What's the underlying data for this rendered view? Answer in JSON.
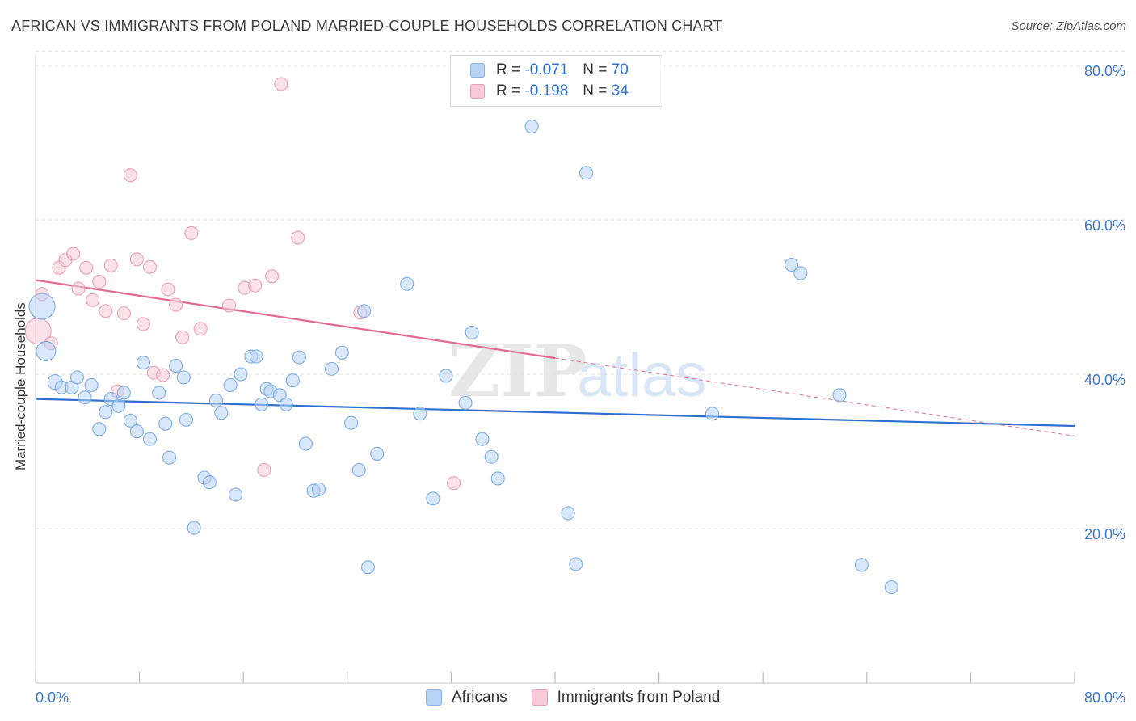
{
  "header": {
    "title": "AFRICAN VS IMMIGRANTS FROM POLAND MARRIED-COUPLE HOUSEHOLDS CORRELATION CHART",
    "source": "Source: ZipAtlas.com"
  },
  "legend": {
    "rows": [
      {
        "r_label": "R =",
        "r_value": "-0.071",
        "n_label": "N =",
        "n_value": "70"
      },
      {
        "r_label": "R =",
        "r_value": "-0.198",
        "n_label": "N =",
        "n_value": "34"
      }
    ],
    "bottom": [
      "Africans",
      "Immigrants from Poland"
    ]
  },
  "colors": {
    "africans_fill": "#b9d3f6",
    "africans_stroke": "#7eaee6",
    "africans_line": "#2f6fd0",
    "poland_fill": "#f8c9d6",
    "poland_stroke": "#eaa0b6",
    "poland_line": "#e36a93",
    "tick_label": "#3a78d0",
    "grid": "#dcdcdc"
  },
  "chart_data": {
    "type": "scatter",
    "title": "AFRICAN VS IMMIGRANTS FROM POLAND MARRIED-COUPLE HOUSEHOLDS CORRELATION CHART",
    "xlabel": "",
    "ylabel": "Married-couple Households",
    "xlim": [
      0,
      80
    ],
    "ylim": [
      0,
      82
    ],
    "x_tick_labels": [
      "0.0%",
      "80.0%"
    ],
    "y_ticks": [
      20,
      40,
      60,
      80
    ],
    "y_tick_labels": [
      "20.0%",
      "40.0%",
      "60.0%",
      "80.0%"
    ],
    "grid": true,
    "watermark": "ZIPatlas",
    "series": [
      {
        "name": "Africans",
        "r": -0.071,
        "n": 70,
        "trend": {
          "x0": 0,
          "y0": 36.8,
          "x1": 80,
          "y1": 33.3,
          "dash_from": null
        },
        "points": [
          [
            0.5,
            48.8,
            16
          ],
          [
            0.8,
            43.0,
            12
          ],
          [
            1.5,
            39.0,
            9
          ],
          [
            2.0,
            38.3,
            8
          ],
          [
            2.8,
            38.3,
            8
          ],
          [
            3.2,
            39.6,
            8
          ],
          [
            3.8,
            37.0,
            8
          ],
          [
            4.3,
            38.6,
            8
          ],
          [
            4.9,
            32.9,
            8
          ],
          [
            5.4,
            35.1,
            8
          ],
          [
            5.8,
            36.8,
            8
          ],
          [
            6.4,
            35.9,
            8
          ],
          [
            6.8,
            37.6,
            8
          ],
          [
            7.3,
            34.0,
            8
          ],
          [
            7.8,
            32.6,
            8
          ],
          [
            8.3,
            41.5,
            8
          ],
          [
            8.8,
            31.6,
            8
          ],
          [
            9.5,
            37.6,
            8
          ],
          [
            10.0,
            33.6,
            8
          ],
          [
            10.3,
            29.2,
            8
          ],
          [
            10.8,
            41.1,
            8
          ],
          [
            11.4,
            39.6,
            8
          ],
          [
            11.6,
            34.1,
            8
          ],
          [
            12.2,
            20.1,
            8
          ],
          [
            13.0,
            26.6,
            8
          ],
          [
            13.4,
            26.0,
            8
          ],
          [
            13.9,
            36.6,
            8
          ],
          [
            14.3,
            35.0,
            8
          ],
          [
            15.0,
            38.6,
            8
          ],
          [
            15.4,
            24.4,
            8
          ],
          [
            15.8,
            40.0,
            8
          ],
          [
            16.6,
            42.3,
            8
          ],
          [
            17.0,
            42.3,
            8
          ],
          [
            17.4,
            36.1,
            8
          ],
          [
            17.8,
            38.1,
            8
          ],
          [
            18.1,
            37.8,
            8
          ],
          [
            18.8,
            37.3,
            8
          ],
          [
            19.3,
            36.1,
            8
          ],
          [
            19.8,
            39.2,
            8
          ],
          [
            20.3,
            42.2,
            8
          ],
          [
            20.8,
            31.0,
            8
          ],
          [
            21.4,
            24.9,
            8
          ],
          [
            21.8,
            25.1,
            8
          ],
          [
            22.8,
            40.7,
            8
          ],
          [
            23.6,
            42.8,
            8
          ],
          [
            24.3,
            33.7,
            8
          ],
          [
            24.9,
            27.6,
            8
          ],
          [
            25.3,
            48.2,
            8
          ],
          [
            25.6,
            15.0,
            8
          ],
          [
            26.3,
            29.7,
            8
          ],
          [
            28.6,
            51.7,
            8
          ],
          [
            29.6,
            34.9,
            8
          ],
          [
            30.6,
            23.9,
            8
          ],
          [
            31.6,
            39.8,
            8
          ],
          [
            33.1,
            36.3,
            8
          ],
          [
            33.6,
            45.4,
            8
          ],
          [
            34.4,
            31.6,
            8
          ],
          [
            35.1,
            29.3,
            8
          ],
          [
            35.6,
            26.5,
            8
          ],
          [
            38.2,
            72.1,
            8
          ],
          [
            41.0,
            22.0,
            8
          ],
          [
            41.6,
            15.4,
            8
          ],
          [
            42.4,
            66.1,
            8
          ],
          [
            52.1,
            34.9,
            8
          ],
          [
            58.2,
            54.2,
            8
          ],
          [
            58.9,
            53.1,
            8
          ],
          [
            61.9,
            37.3,
            8
          ],
          [
            63.6,
            15.3,
            8
          ],
          [
            65.9,
            12.4,
            8
          ],
          [
            61.0,
            53.1,
            0
          ]
        ]
      },
      {
        "name": "Immigrants from Poland",
        "r": -0.198,
        "n": 34,
        "trend": {
          "x0": 0,
          "y0": 52.2,
          "x1": 80,
          "y1": 32.0,
          "dash_from": 40
        },
        "points": [
          [
            0.2,
            45.6,
            16
          ],
          [
            0.5,
            50.4,
            8
          ],
          [
            1.2,
            44.0,
            8
          ],
          [
            1.8,
            53.8,
            8
          ],
          [
            2.3,
            54.8,
            8
          ],
          [
            2.9,
            55.6,
            8
          ],
          [
            3.3,
            51.1,
            8
          ],
          [
            3.9,
            53.8,
            8
          ],
          [
            4.4,
            49.6,
            8
          ],
          [
            4.9,
            52.0,
            8
          ],
          [
            5.4,
            48.2,
            8
          ],
          [
            5.8,
            54.1,
            8
          ],
          [
            6.3,
            37.8,
            8
          ],
          [
            6.8,
            47.9,
            8
          ],
          [
            7.3,
            65.8,
            8
          ],
          [
            7.8,
            54.9,
            8
          ],
          [
            8.3,
            46.5,
            8
          ],
          [
            8.8,
            53.9,
            8
          ],
          [
            9.1,
            40.2,
            8
          ],
          [
            9.8,
            39.9,
            8
          ],
          [
            10.2,
            51.0,
            8
          ],
          [
            10.8,
            49.0,
            8
          ],
          [
            11.3,
            44.8,
            8
          ],
          [
            12.0,
            58.3,
            8
          ],
          [
            12.7,
            45.9,
            8
          ],
          [
            14.9,
            48.9,
            8
          ],
          [
            16.1,
            51.2,
            8
          ],
          [
            16.9,
            51.5,
            8
          ],
          [
            17.6,
            27.6,
            8
          ],
          [
            18.2,
            52.7,
            8
          ],
          [
            18.9,
            77.6,
            8
          ],
          [
            20.2,
            57.7,
            8
          ],
          [
            25.0,
            48.0,
            8
          ],
          [
            32.2,
            25.9,
            8
          ]
        ]
      }
    ]
  }
}
